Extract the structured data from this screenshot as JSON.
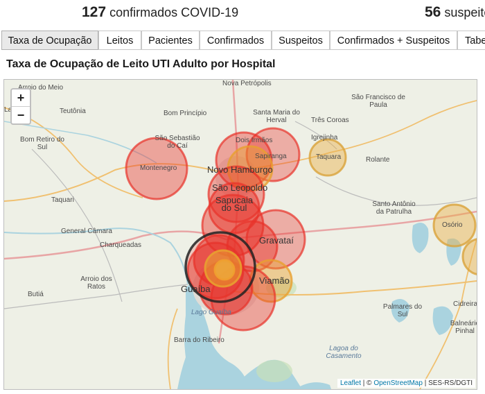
{
  "stats": {
    "confirmed_count": "127",
    "confirmed_label": "confirmados COVID-19",
    "suspected_count": "56",
    "suspected_label": "suspeito"
  },
  "tabs": [
    {
      "label": "Taxa de Ocupação",
      "active": true
    },
    {
      "label": "Leitos",
      "active": false
    },
    {
      "label": "Pacientes",
      "active": false
    },
    {
      "label": "Confirmados",
      "active": false
    },
    {
      "label": "Suspeitos",
      "active": false
    },
    {
      "label": "Confirmados + Suspeitos",
      "active": false
    },
    {
      "label": "Tabe",
      "active": false
    }
  ],
  "section_title": "Taxa de Ocupação de Leito UTI Adulto por Hospital",
  "map": {
    "zoom_in": "+",
    "zoom_out": "−",
    "attribution": {
      "leaflet": "Leaflet",
      "sep1": " | © ",
      "osm": "OpenStreetMap",
      "sep2": " | SES-RS/DGTI"
    },
    "places": [
      "Arroio do Meio",
      "Lajeado",
      "Teutônia",
      "Nova Petrópolis",
      "Bom Princípio",
      "Santa Maria do Herval",
      "São Francisco de Paula",
      "São Sebastião do Caí",
      "Dois Irmãos",
      "Três Coroas",
      "Igrejinha",
      "Bom Retiro do Sul",
      "Montenegro",
      "Sapiranga",
      "Taquara",
      "Rolante",
      "Novo Hamburgo",
      "São Leopoldo",
      "Sapucaia do Sul",
      "Taquari",
      "Santo Antônio da Patrulha",
      "General Câmara",
      "Osório",
      "Charqueadas",
      "Gravataí",
      "Arroio dos Ratos",
      "Guaíba",
      "Viamão",
      "Butiá",
      "Lago Guaíba",
      "Cidreira",
      "Palmares do Sul",
      "Balneário Pinhal",
      "Barra do Ribeiro",
      "Lagoa do Casamento"
    ],
    "legend_colors": {
      "high": "#e8322a",
      "medium": "#e8a030",
      "low": "#d9b04a",
      "full": "#222222"
    }
  }
}
